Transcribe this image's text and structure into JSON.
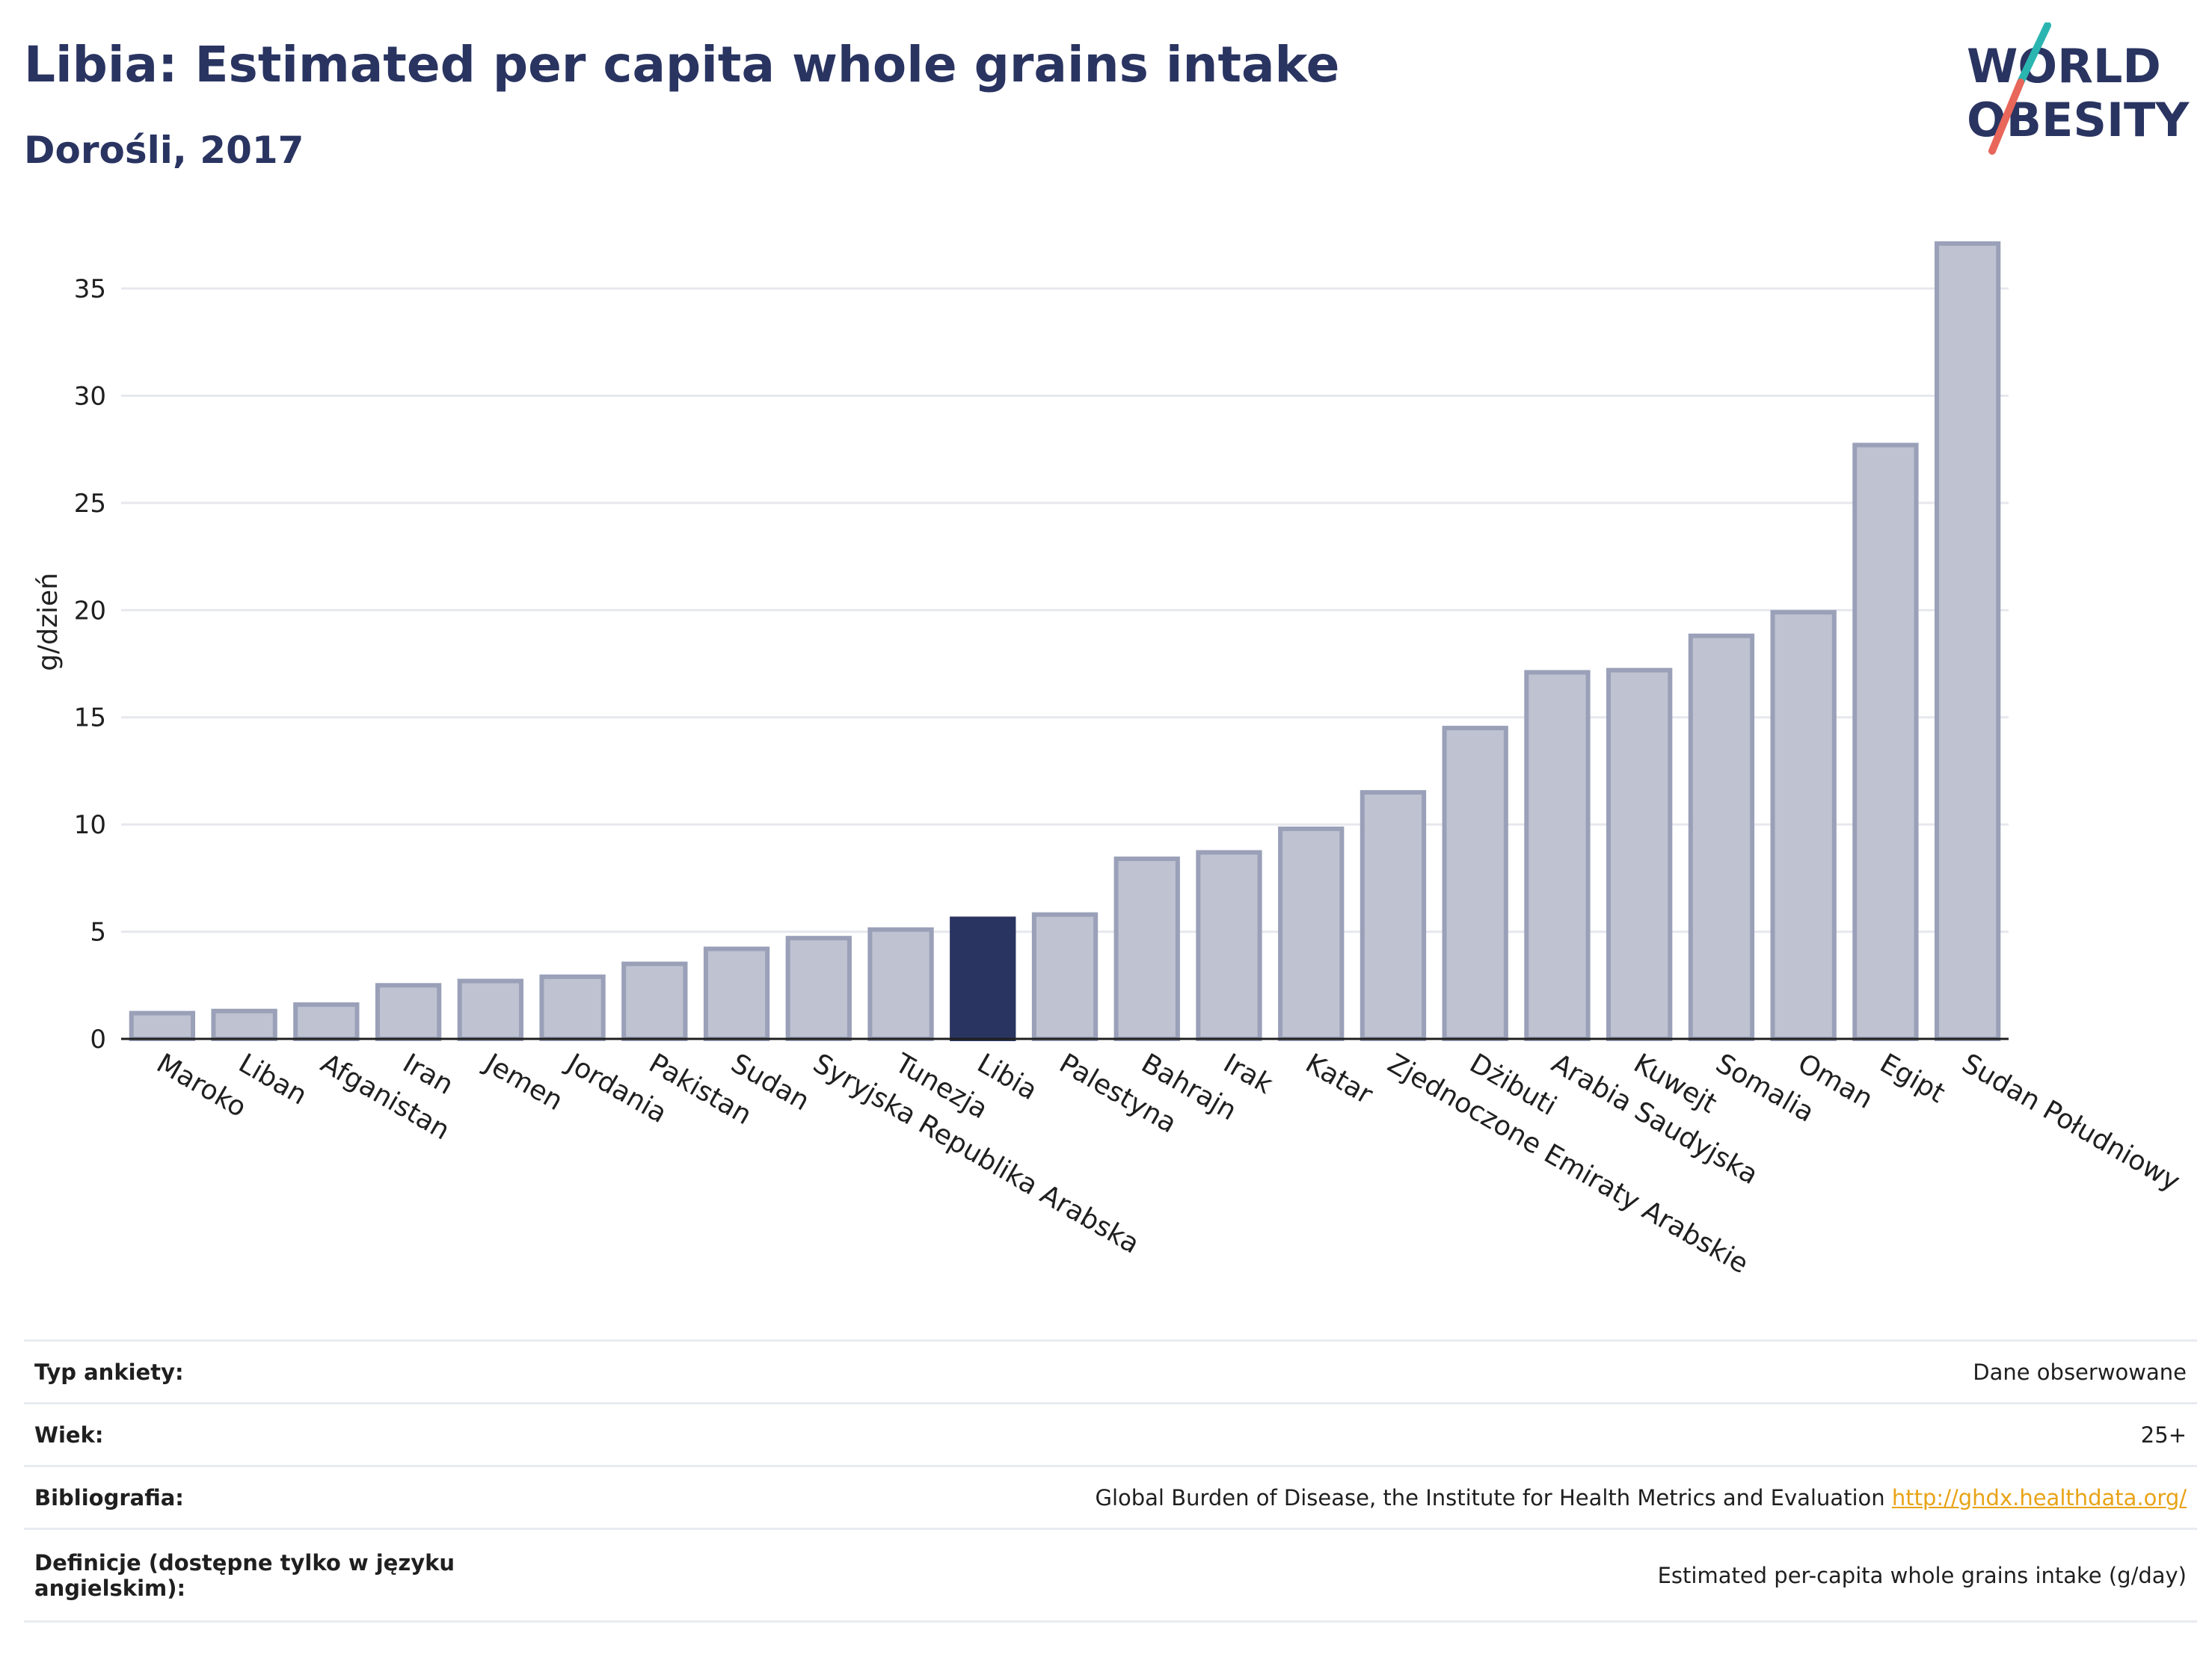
{
  "header": {
    "title": "Libia: Estimated per capita whole grains intake",
    "subtitle": "Dorośli, 2017"
  },
  "logo": {
    "line1": "WORLD",
    "line2": "OBESITY"
  },
  "colors": {
    "bar": "#bfc2d0",
    "bar_stroke": "#9aa0b8",
    "highlight": "#2a3461",
    "grid": "#e6e8ee"
  },
  "chart_data": {
    "type": "bar",
    "ylabel": "g/dzień",
    "ylim": [
      0,
      38
    ],
    "yticks": [
      0,
      5,
      10,
      15,
      20,
      25,
      30,
      35
    ],
    "grid": true,
    "highlight": "Libia",
    "categories": [
      "Maroko",
      "Liban",
      "Afganistan",
      "Iran",
      "Jemen",
      "Jordania",
      "Pakistan",
      "Sudan",
      "Syryjska Republika Arabska",
      "Tunezja",
      "Libia",
      "Palestyna",
      "Bahrajn",
      "Irak",
      "Katar",
      "Zjednoczone Emiraty Arabskie",
      "Dżibuti",
      "Arabia Saudyjska",
      "Kuwejt",
      "Somalia",
      "Oman",
      "Egipt",
      "Sudan Południowy"
    ],
    "values": [
      1.2,
      1.3,
      1.6,
      2.5,
      2.7,
      2.9,
      3.5,
      4.2,
      4.7,
      5.1,
      5.6,
      5.8,
      8.4,
      8.7,
      9.8,
      11.5,
      14.5,
      17.1,
      17.2,
      18.8,
      19.9,
      27.7,
      37.1
    ]
  },
  "meta": [
    {
      "key": "Typ ankiety:",
      "value": "Dane obserwowane",
      "link": ""
    },
    {
      "key": "Wiek:",
      "value": "25+",
      "link": ""
    },
    {
      "key": "Bibliografia:",
      "value": "Global Burden of Disease, the Institute for Health Metrics and Evaluation",
      "link": "http://ghdx.healthdata.org/"
    },
    {
      "key": "Definicje (dostępne tylko w języku angielskim):",
      "value": "Estimated per-capita whole grains intake (g/day)",
      "link": ""
    }
  ]
}
